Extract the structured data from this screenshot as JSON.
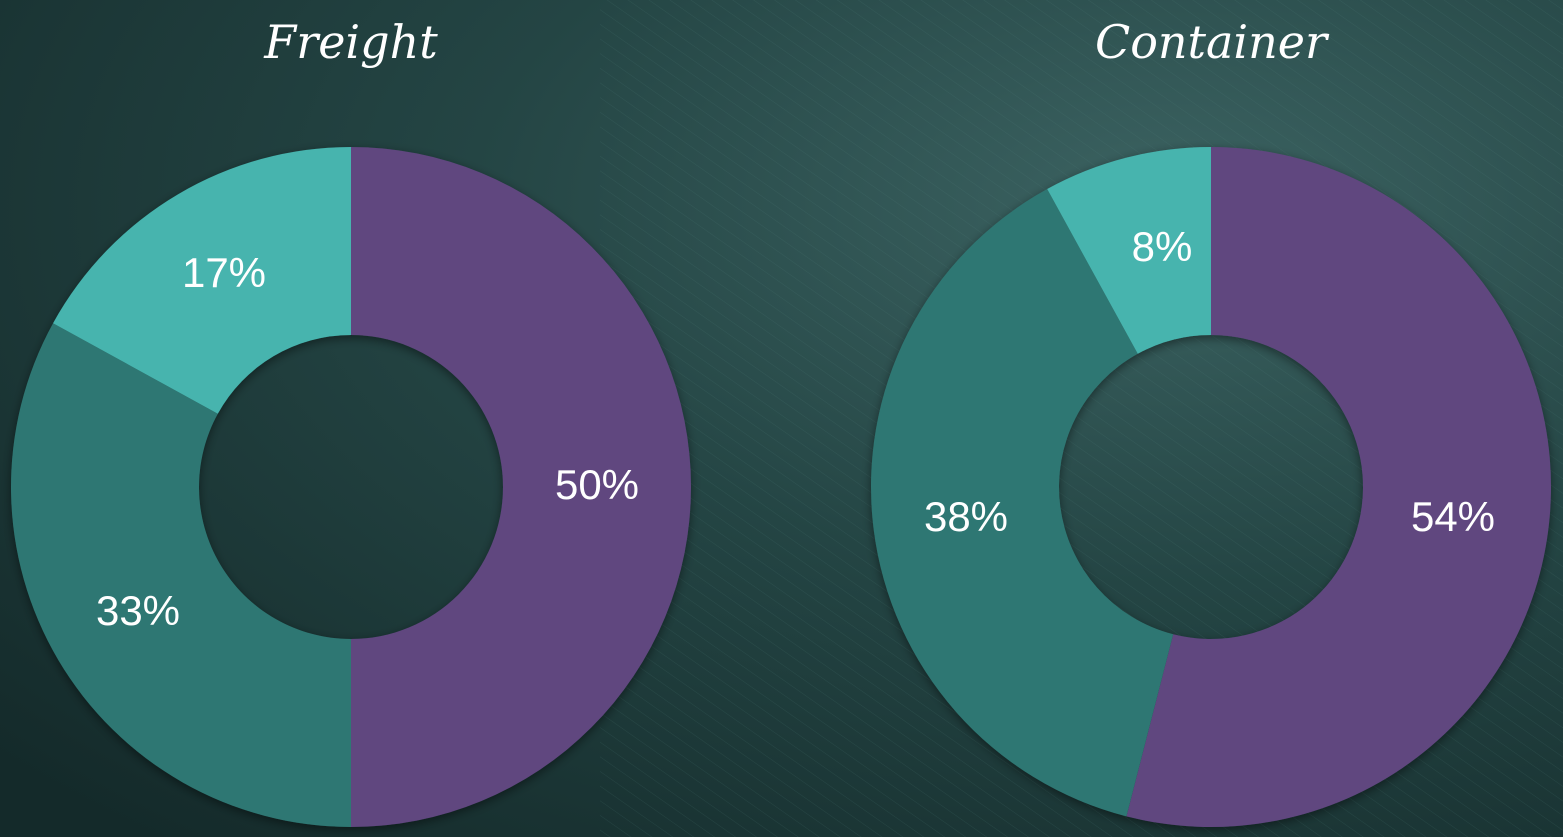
{
  "chart_data": [
    {
      "type": "pie",
      "variant": "donut",
      "title": "Freight",
      "slices": [
        {
          "label": "50%",
          "value": 50,
          "color": "#60467f"
        },
        {
          "label": "33%",
          "value": 33,
          "color": "#2f7773"
        },
        {
          "label": "17%",
          "value": 17,
          "color": "#46b4ae"
        }
      ]
    },
    {
      "type": "pie",
      "variant": "donut",
      "title": "Container",
      "slices": [
        {
          "label": "54%",
          "value": 54,
          "color": "#60467f"
        },
        {
          "label": "38%",
          "value": 38,
          "color": "#2f7773"
        },
        {
          "label": "8%",
          "value": 8,
          "color": "#46b4ae"
        }
      ]
    }
  ]
}
